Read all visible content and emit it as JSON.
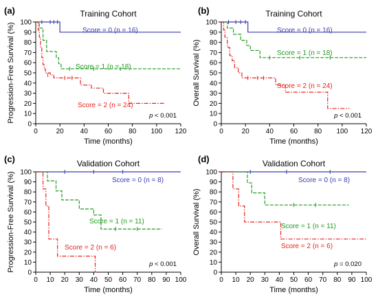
{
  "chart_data": [
    {
      "panel": "(a)",
      "type": "line",
      "step": true,
      "title": "Training Cohort",
      "xlabel": "Time (months)",
      "ylabel": "Progression-Free Survival (%)",
      "xlim": [
        0,
        120
      ],
      "ylim": [
        0,
        100
      ],
      "xticks": [
        0,
        20,
        40,
        60,
        80,
        100,
        120
      ],
      "yticks": [
        0,
        10,
        20,
        30,
        40,
        50,
        60,
        70,
        80,
        90,
        100
      ],
      "pvalue_italic": "p",
      "pvalue_text": " < 0.001",
      "series": [
        {
          "name": "Score = 0 (n = 16)",
          "color": "#3a3aae",
          "dash": "solid",
          "x": [
            0,
            20,
            120
          ],
          "y": [
            100,
            90,
            90
          ],
          "end": 120,
          "censor": [
            [
              5,
              100
            ],
            [
              12,
              100
            ],
            [
              15,
              100
            ],
            [
              18,
              100
            ]
          ]
        },
        {
          "name": "Score = 1 (n = 18)",
          "color": "#1e9a1e",
          "dash": "dashed",
          "x": [
            0,
            3,
            6,
            9,
            17,
            19,
            21,
            120
          ],
          "y": [
            100,
            94,
            82,
            71,
            65,
            59,
            54,
            54
          ],
          "end": 120,
          "censor": [
            [
              28,
              54
            ],
            [
              48,
              54
            ],
            [
              70,
              54
            ]
          ]
        },
        {
          "name": "Score = 2 (n = 24)",
          "color": "#e8211b",
          "dash": "dashdot",
          "x": [
            0,
            2,
            3,
            4,
            5,
            6,
            7,
            8,
            12,
            15,
            37,
            46,
            56,
            77,
            107
          ],
          "y": [
            100,
            92,
            85,
            75,
            65,
            58,
            54,
            50,
            48,
            45,
            38,
            35,
            30,
            20,
            20
          ],
          "end": 107,
          "censor": [
            [
              10,
              48
            ],
            [
              24,
              45
            ],
            [
              30,
              45
            ]
          ]
        }
      ]
    },
    {
      "panel": "(b)",
      "type": "line",
      "step": true,
      "title": "Training Cohort",
      "xlabel": "Time (months)",
      "ylabel": "Overall Survival (%)",
      "xlim": [
        0,
        120
      ],
      "ylim": [
        0,
        100
      ],
      "xticks": [
        0,
        20,
        40,
        60,
        80,
        100,
        120
      ],
      "yticks": [
        0,
        10,
        20,
        30,
        40,
        50,
        60,
        70,
        80,
        90,
        100
      ],
      "pvalue_italic": "p",
      "pvalue_text": " < 0.001",
      "series": [
        {
          "name": "Score = 0 (n = 16)",
          "color": "#3a3aae",
          "dash": "solid",
          "x": [
            0,
            22,
            120
          ],
          "y": [
            100,
            90,
            90
          ],
          "end": 120,
          "censor": [
            [
              6,
              100
            ],
            [
              12,
              100
            ],
            [
              16,
              100
            ],
            [
              20,
              100
            ]
          ]
        },
        {
          "name": "Score = 1 (n = 18)",
          "color": "#1e9a1e",
          "dash": "dashed",
          "x": [
            0,
            5,
            10,
            16,
            21,
            24,
            32,
            120
          ],
          "y": [
            100,
            94,
            88,
            82,
            77,
            72,
            65,
            65
          ],
          "end": 120,
          "censor": [
            [
              40,
              65
            ],
            [
              65,
              65
            ],
            [
              90,
              65
            ]
          ]
        },
        {
          "name": "Score = 2 (n = 24)",
          "color": "#e8211b",
          "dash": "dashdot",
          "x": [
            0,
            2,
            3,
            5,
            7,
            9,
            11,
            14,
            17,
            45,
            53,
            88,
            106
          ],
          "y": [
            100,
            92,
            85,
            75,
            67,
            62,
            55,
            50,
            45,
            38,
            31,
            15,
            15
          ],
          "end": 106,
          "censor": [
            [
              22,
              45
            ],
            [
              30,
              45
            ],
            [
              35,
              45
            ]
          ]
        }
      ]
    },
    {
      "panel": "(c)",
      "type": "line",
      "step": true,
      "title": "Validation Cohort",
      "xlabel": "Time (months)",
      "ylabel": "Progression-Free Survival (%)",
      "xlim": [
        0,
        100
      ],
      "ylim": [
        0,
        100
      ],
      "xticks": [
        0,
        10,
        20,
        30,
        40,
        50,
        60,
        70,
        80,
        90,
        100
      ],
      "yticks": [
        0,
        10,
        20,
        30,
        40,
        50,
        60,
        70,
        80,
        90,
        100
      ],
      "pvalue_italic": "p",
      "pvalue_text": " < 0.001",
      "series": [
        {
          "name": "Score = 0 (n = 8)",
          "color": "#3a3aae",
          "dash": "solid",
          "x": [
            0,
            100
          ],
          "y": [
            100,
            100
          ],
          "end": 100,
          "censor": [
            [
              20,
              100
            ],
            [
              40,
              100
            ],
            [
              60,
              100
            ]
          ]
        },
        {
          "name": "Score = 1 (n = 11)",
          "color": "#1e9a1e",
          "dash": "dashed",
          "x": [
            0,
            8,
            14,
            18,
            30,
            40,
            45,
            87
          ],
          "y": [
            100,
            91,
            81,
            72,
            63,
            57,
            43,
            43
          ],
          "end": 87,
          "censor": [
            [
              55,
              43
            ],
            [
              70,
              43
            ]
          ]
        },
        {
          "name": "Score = 2 (n = 6)",
          "color": "#e8211b",
          "dash": "dashdot",
          "x": [
            0,
            5,
            7,
            9,
            15,
            41,
            42
          ],
          "y": [
            100,
            83,
            66,
            33,
            16,
            0,
            0
          ],
          "end": 42,
          "censor": []
        }
      ]
    },
    {
      "panel": "(d)",
      "type": "line",
      "step": true,
      "title": "Validation Cohort",
      "xlabel": "Time (months)",
      "ylabel": "Overall Survival (%)",
      "xlim": [
        0,
        100
      ],
      "ylim": [
        0,
        100
      ],
      "xticks": [
        0,
        10,
        20,
        30,
        40,
        50,
        60,
        70,
        80,
        90,
        100
      ],
      "yticks": [
        0,
        10,
        20,
        30,
        40,
        50,
        60,
        70,
        80,
        90,
        100
      ],
      "pvalue_italic": "p",
      "pvalue_text": " = 0.020",
      "series": [
        {
          "name": "Score = 0 (n = 8)",
          "color": "#3a3aae",
          "dash": "solid",
          "x": [
            0,
            100
          ],
          "y": [
            100,
            100
          ],
          "end": 100,
          "censor": [
            [
              20,
              100
            ],
            [
              45,
              100
            ],
            [
              75,
              100
            ]
          ]
        },
        {
          "name": "Score = 1 (n = 11)",
          "color": "#1e9a1e",
          "dash": "dashed",
          "x": [
            0,
            18,
            21,
            30,
            88
          ],
          "y": [
            100,
            89,
            79,
            67,
            67
          ],
          "end": 88,
          "censor": [
            [
              50,
              67
            ],
            [
              65,
              67
            ]
          ]
        },
        {
          "name": "Score = 2 (n = 6)",
          "color": "#e8211b",
          "dash": "dashdot",
          "x": [
            0,
            8,
            12,
            16,
            41,
            100
          ],
          "y": [
            100,
            83,
            66,
            50,
            33,
            33
          ],
          "end": 100,
          "censor": []
        }
      ]
    }
  ]
}
